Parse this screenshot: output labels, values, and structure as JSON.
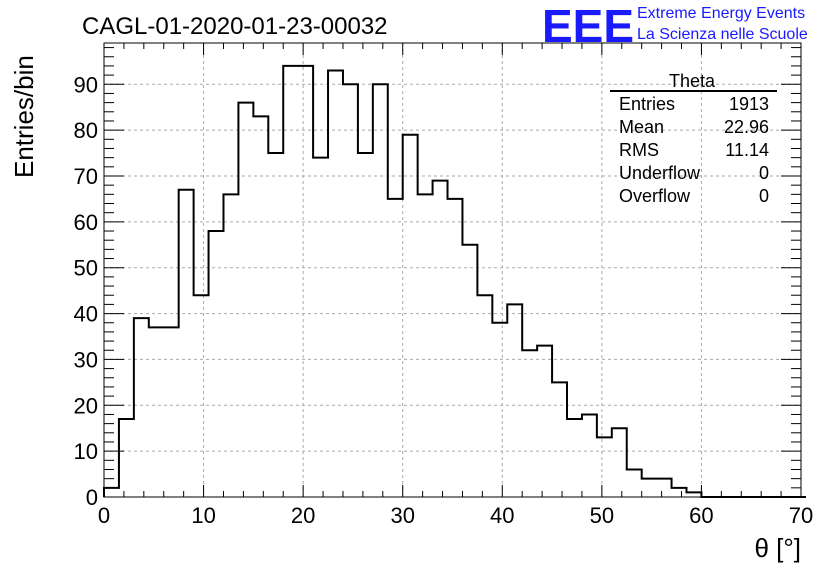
{
  "header": {
    "run_title": "CAGL-01-2020-01-23-00032",
    "logo_text": "EEE",
    "logo_line1": "Extreme Energy Events",
    "logo_line2": "La Scienza nelle Scuole",
    "logo_color": "#1a1aff"
  },
  "stats": {
    "title": "Theta",
    "rows": [
      {
        "label": "Entries",
        "value": "1913"
      },
      {
        "label": "Mean",
        "value": "22.96"
      },
      {
        "label": "RMS",
        "value": "11.14"
      },
      {
        "label": "Underflow",
        "value": "0"
      },
      {
        "label": "Overflow",
        "value": "0"
      }
    ]
  },
  "chart_data": {
    "type": "bar",
    "style": "step-histogram",
    "xlabel": "θ [°]",
    "ylabel": "Entries/bin",
    "xlim": [
      0,
      70
    ],
    "ylim": [
      0,
      99
    ],
    "bin_width": 1.5,
    "x_ticks": [
      0,
      10,
      20,
      30,
      40,
      50,
      60,
      70
    ],
    "y_ticks": [
      0,
      10,
      20,
      30,
      40,
      50,
      60,
      70,
      80,
      90
    ],
    "grid": true,
    "bin_edges_start": 0,
    "values": [
      2,
      17,
      39,
      37,
      37,
      67,
      44,
      58,
      66,
      86,
      83,
      75,
      94,
      94,
      74,
      93,
      90,
      75,
      90,
      65,
      79,
      66,
      69,
      65,
      55,
      44,
      38,
      42,
      32,
      33,
      25,
      17,
      18,
      13,
      15,
      6,
      4,
      4,
      2,
      1,
      0,
      0,
      0,
      0,
      0,
      0,
      0
    ]
  }
}
